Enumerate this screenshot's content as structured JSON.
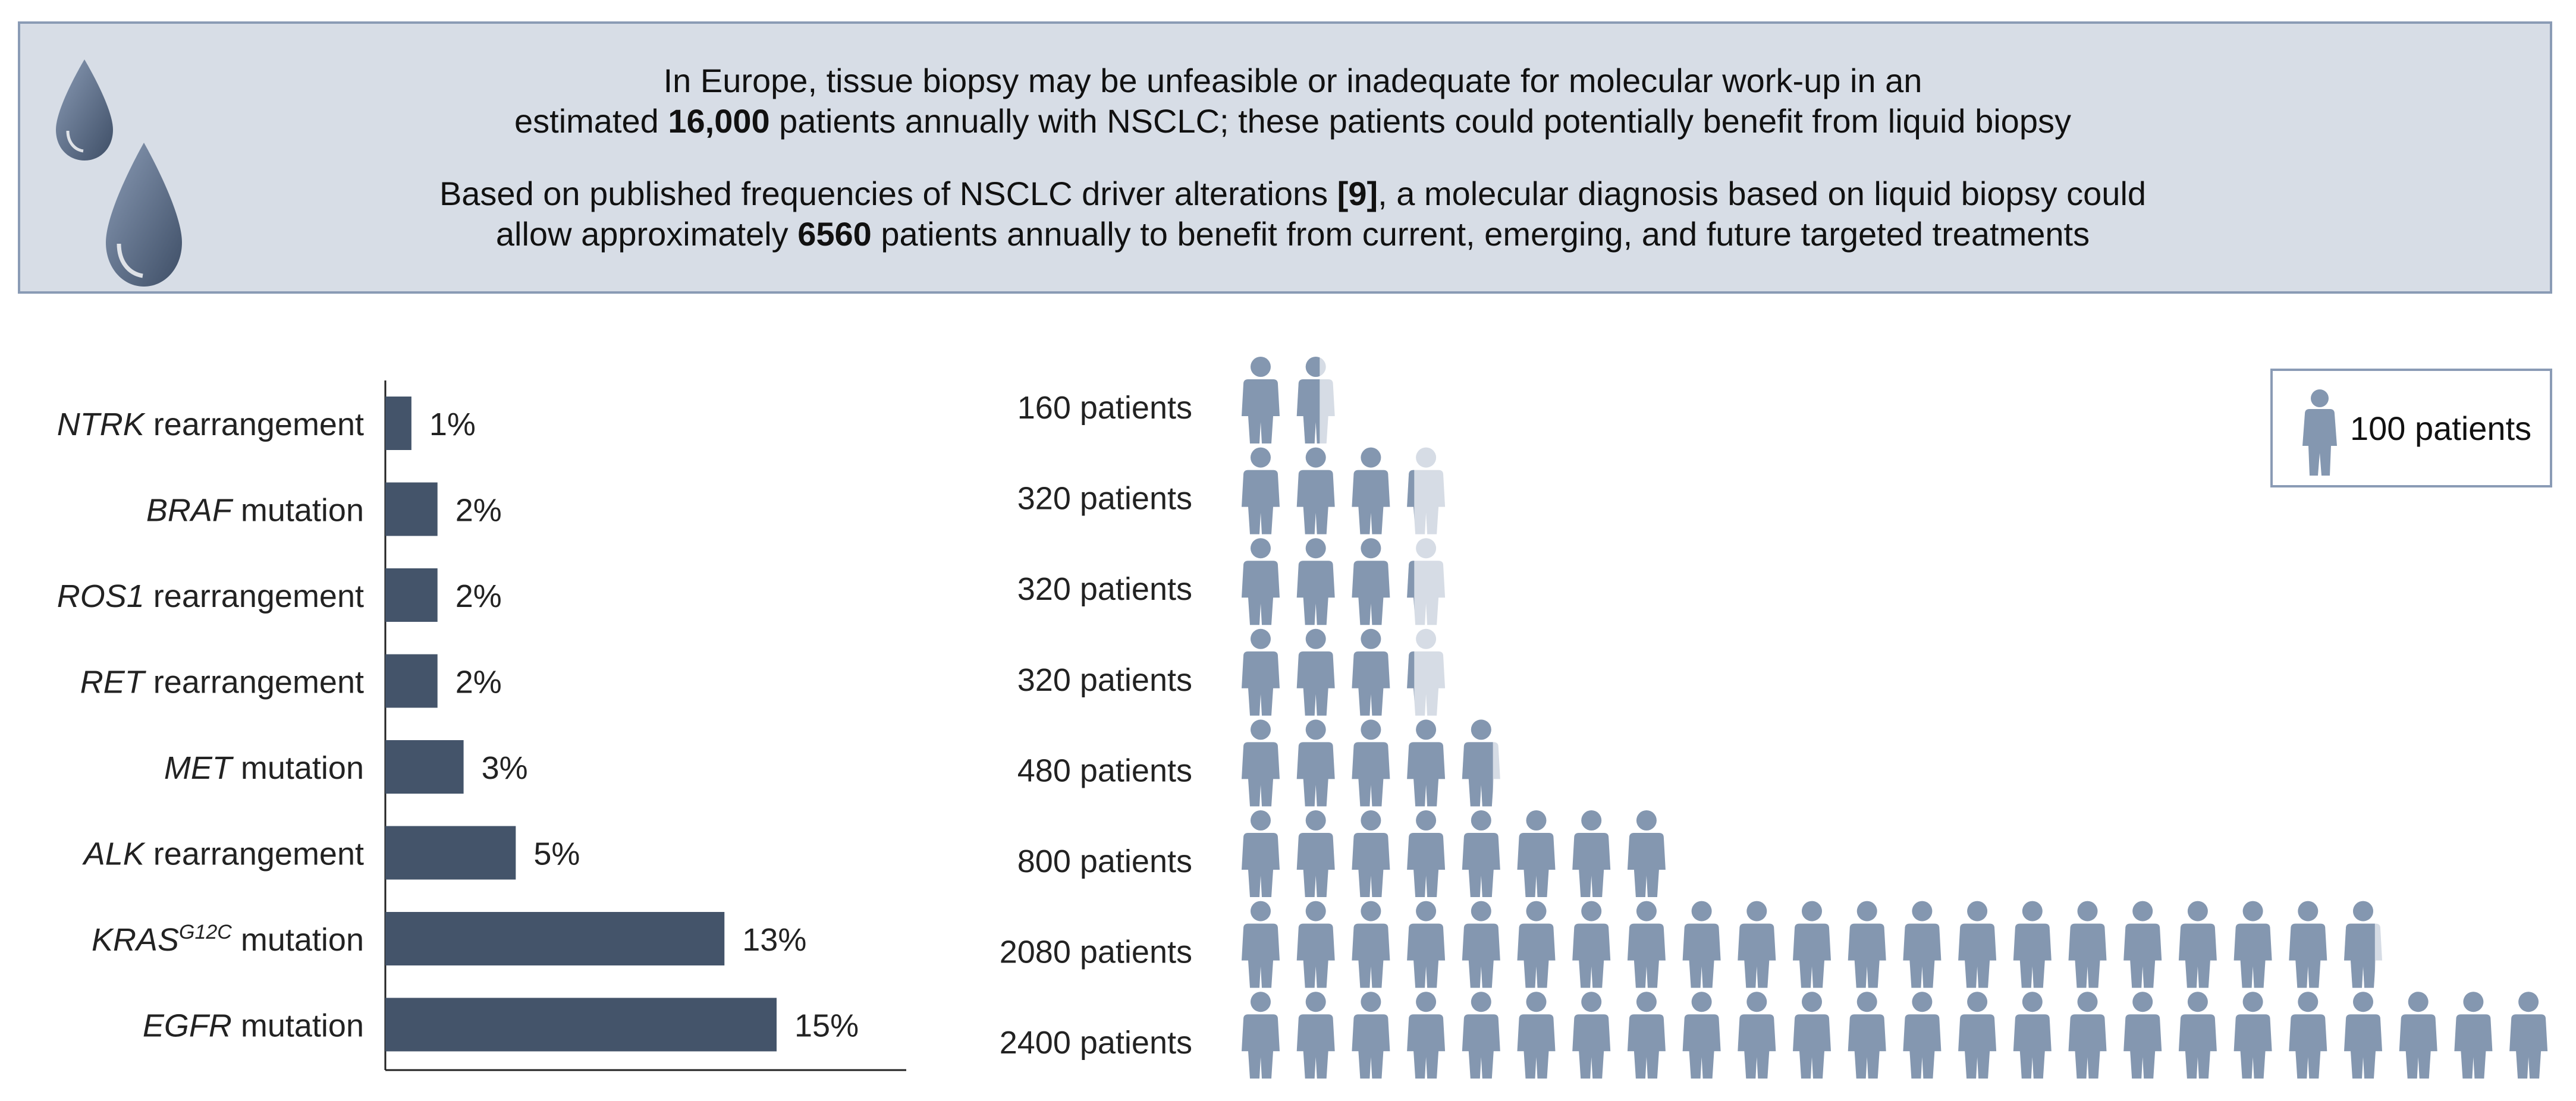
{
  "banner": {
    "para1": {
      "line1": "In Europe, tissue biopsy may be unfeasible or inadequate for molecular work-up in an",
      "line2_pre": "estimated ",
      "line2_bold": "16,000",
      "line2_post": " patients annually with NSCLC; these patients could potentially benefit from liquid biopsy"
    },
    "para2": {
      "line1_pre": "Based on published frequencies of NSCLC driver alterations ",
      "line1_ref": "[9]",
      "line1_post": ", a molecular diagnosis based on liquid biopsy could",
      "line2_pre": "allow approximately ",
      "line2_bold": "6560",
      "line2_post": " patients annually to benefit from current, emerging, and future targeted treatments"
    },
    "icon": "water-drops-icon"
  },
  "legend": {
    "label": "100 patients",
    "icon": "person-icon"
  },
  "colors": {
    "bar": "#44546a",
    "person": "#8497b0",
    "person_faded": "#d6dce5",
    "banner_bg": "#d7dde6",
    "banner_border": "#8a9bb5"
  },
  "chart_data": [
    {
      "type": "bar",
      "orientation": "horizontal",
      "categories": [
        {
          "gene": "NTRK",
          "rest": " rearrangement",
          "sup": ""
        },
        {
          "gene": "BRAF",
          "rest": " mutation",
          "sup": ""
        },
        {
          "gene": "ROS1",
          "rest": " rearrangement",
          "sup": ""
        },
        {
          "gene": "RET",
          "rest": " rearrangement",
          "sup": ""
        },
        {
          "gene": "MET",
          "rest": " mutation",
          "sup": ""
        },
        {
          "gene": "ALK",
          "rest": " rearrangement",
          "sup": ""
        },
        {
          "gene": "KRAS",
          "rest": " mutation",
          "sup": "G12C"
        },
        {
          "gene": "EGFR",
          "rest": " mutation",
          "sup": ""
        }
      ],
      "values": [
        1,
        2,
        2,
        2,
        3,
        5,
        13,
        15
      ],
      "value_labels": [
        "1%",
        "2%",
        "2%",
        "2%",
        "3%",
        "5%",
        "13%",
        "15%"
      ]
    },
    {
      "type": "pictogram",
      "unit": 100,
      "rows": [
        {
          "label": "160 patients",
          "value": 160
        },
        {
          "label": "320 patients",
          "value": 320
        },
        {
          "label": "320 patients",
          "value": 320
        },
        {
          "label": "320 patients",
          "value": 320
        },
        {
          "label": "480 patients",
          "value": 480
        },
        {
          "label": "800 patients",
          "value": 800
        },
        {
          "label": "2080 patients",
          "value": 2080
        },
        {
          "label": "2400 patients",
          "value": 2400
        }
      ]
    }
  ]
}
